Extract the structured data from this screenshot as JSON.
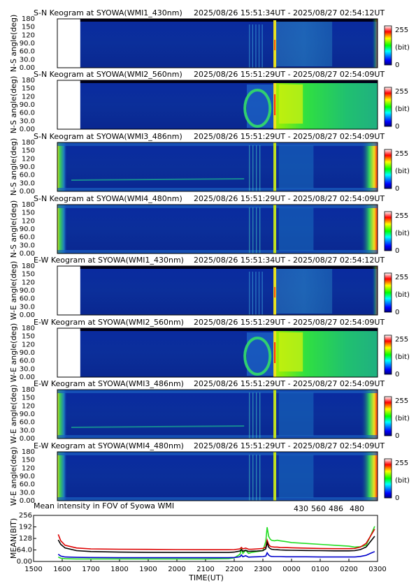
{
  "colors": {
    "c430": "#0000cc",
    "c560": "#22dd22",
    "c486": "#dd0000",
    "c480": "#000000"
  },
  "colorbar": {
    "max": "255",
    "unit": "(bit)",
    "min": "0"
  },
  "keograms": [
    {
      "title": "S-N Keogram at SYOWA(WMI1_430nm)",
      "time": "2025/08/26 15:51:34UT - 2025/08/27 02:54:12UT",
      "ylabel": "N-S angle(deg)",
      "style": "wmi1",
      "start_gap": true
    },
    {
      "title": "S-N Keogram at SYOWA(WMI2_560nm)",
      "time": "2025/08/26 15:51:29UT - 2025/08/27 02:54:09UT",
      "ylabel": "N-S angle(deg)",
      "style": "wmi2",
      "start_gap": true
    },
    {
      "title": "S-N Keogram at SYOWA(WMI3_486nm)",
      "time": "2025/08/26 15:51:29UT - 2025/08/27 02:54:09UT",
      "ylabel": "N-S angle(deg)",
      "style": "wmi3",
      "start_gap": false
    },
    {
      "title": "S-N Keogram at SYOWA(WMI4_480nm)",
      "time": "2025/08/26 15:51:29UT - 2025/08/27 02:54:09UT",
      "ylabel": "N-S angle(deg)",
      "style": "wmi4",
      "start_gap": false
    },
    {
      "title": "E-W Keogram at SYOWA(WMI1_430nm)",
      "time": "2025/08/26 15:51:34UT - 2025/08/27 02:54:12UT",
      "ylabel": "W-E angle(deg)",
      "style": "wmi1",
      "start_gap": true
    },
    {
      "title": "E-W Keogram at SYOWA(WMI2_560nm)",
      "time": "2025/08/26 15:51:29UT - 2025/08/27 02:54:09UT",
      "ylabel": "W-E angle(deg)",
      "style": "wmi2",
      "start_gap": true
    },
    {
      "title": "E-W Keogram at SYOWA(WMI3_486nm)",
      "time": "2025/08/26 15:51:29UT - 2025/08/27 02:54:09UT",
      "ylabel": "W-E angle(deg)",
      "style": "wmi3",
      "start_gap": false
    },
    {
      "title": "E-W Keogram at SYOWA(WMI4_480nm)",
      "time": "2025/08/26 15:51:29UT - 2025/08/27 02:54:09UT",
      "ylabel": "W-E angle(deg)",
      "style": "wmi4",
      "start_gap": false
    }
  ],
  "keogram_yticks": [
    "0.00",
    "30.0",
    "60.0",
    "90.0",
    "120",
    "150",
    "180"
  ],
  "chart_data": {
    "type": "line",
    "title": "Mean intensity in FOV of Syowa WMI",
    "xlabel": "TIME(UT)",
    "ylabel": "MEAN(BIT)",
    "x_ticks": [
      "1500",
      "1600",
      "1700",
      "1800",
      "1900",
      "2000",
      "2100",
      "2200",
      "2300",
      "0000",
      "0100",
      "0200",
      "0300"
    ],
    "y_ticks": [
      "0.00",
      "64.0",
      "128",
      "192",
      "256"
    ],
    "ylim": [
      0,
      256
    ],
    "x": [
      15.86,
      15.95,
      16.1,
      16.5,
      17.0,
      18.0,
      19.0,
      20.0,
      21.0,
      21.6,
      21.8,
      22.0,
      22.1,
      22.2,
      22.25,
      22.3,
      22.4,
      22.5,
      22.6,
      22.8,
      23.0,
      23.1,
      23.15,
      23.2,
      23.25,
      23.3,
      23.4,
      23.5,
      23.6,
      23.8,
      24.0,
      24.5,
      25.0,
      25.5,
      26.0,
      26.2,
      26.4,
      26.6,
      26.75,
      26.9
    ],
    "series": [
      {
        "name": "430",
        "color": "#0000cc",
        "values": [
          40,
          30,
          25,
          23,
          22,
          21,
          21,
          21,
          21,
          21,
          21,
          22,
          24,
          26,
          36,
          26,
          32,
          24,
          25,
          26,
          27,
          30,
          48,
          36,
          30,
          28,
          27,
          27,
          27,
          26,
          26,
          26,
          25,
          25,
          25,
          25,
          28,
          34,
          45,
          55
        ]
      },
      {
        "name": "560",
        "color": "#22dd22",
        "values": [
          25,
          18,
          15,
          14,
          14,
          14,
          14,
          14,
          14,
          15,
          16,
          20,
          30,
          40,
          70,
          45,
          62,
          45,
          50,
          55,
          60,
          110,
          190,
          140,
          125,
          118,
          115,
          118,
          115,
          110,
          105,
          100,
          95,
          90,
          85,
          80,
          82,
          90,
          140,
          195
        ]
      },
      {
        "name": "486",
        "color": "#dd0000",
        "values": [
          150,
          115,
          90,
          75,
          70,
          68,
          67,
          66,
          65,
          65,
          65,
          66,
          68,
          70,
          78,
          70,
          74,
          68,
          68,
          70,
          72,
          80,
          118,
          95,
          85,
          82,
          80,
          80,
          78,
          77,
          76,
          74,
          72,
          71,
          71,
          72,
          80,
          100,
          140,
          180
        ]
      },
      {
        "name": "480",
        "color": "#000000",
        "values": [
          120,
          95,
          75,
          60,
          55,
          52,
          51,
          50,
          50,
          50,
          50,
          52,
          55,
          58,
          66,
          57,
          62,
          56,
          57,
          58,
          60,
          70,
          105,
          80,
          72,
          68,
          66,
          65,
          64,
          63,
          62,
          61,
          60,
          59,
          59,
          60,
          66,
          80,
          110,
          140
        ]
      }
    ]
  }
}
